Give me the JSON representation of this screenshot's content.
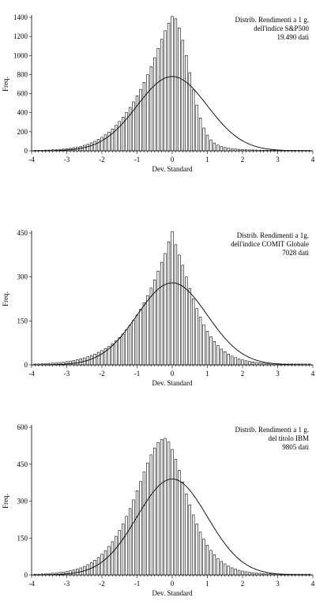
{
  "chart_data": [
    {
      "type": "bar",
      "overlay": "normal-curve",
      "annotation": [
        "Distrib. Rendimenti a 1 g.",
        "dell'indice S&P500",
        "19.490 dati"
      ],
      "annotation_position": "top-right",
      "xlabel": "Dev. Standard",
      "ylabel": "Freq.",
      "xlim": [
        -4,
        4
      ],
      "ylim": [
        0,
        1400
      ],
      "xticks": [
        "-4",
        "-3",
        "-2",
        "-1",
        "0",
        "1",
        "2",
        "3",
        "4"
      ],
      "yticks": [
        "0",
        "200",
        "400",
        "600",
        "800",
        "1000",
        "1200",
        "1400"
      ],
      "x": [
        -3.9,
        -3.8,
        -3.7,
        -3.6,
        -3.5,
        -3.4,
        -3.3,
        -3.2,
        -3.1,
        -3.0,
        -2.9,
        -2.8,
        -2.7,
        -2.6,
        -2.5,
        -2.4,
        -2.3,
        -2.2,
        -2.1,
        -2.0,
        -1.9,
        -1.8,
        -1.7,
        -1.6,
        -1.5,
        -1.4,
        -1.3,
        -1.2,
        -1.1,
        -1.0,
        -0.9,
        -0.8,
        -0.7,
        -0.6,
        -0.5,
        -0.4,
        -0.3,
        -0.2,
        -0.1,
        0.0,
        0.1,
        0.2,
        0.3,
        0.4,
        0.5,
        0.6,
        0.7,
        0.8,
        0.9,
        1.0,
        1.1,
        1.2,
        1.3,
        1.4,
        1.5,
        1.6,
        1.7,
        1.8,
        1.9,
        2.0,
        2.1,
        2.2,
        2.3,
        2.4,
        2.5,
        2.6,
        2.7,
        2.8,
        2.9,
        3.0,
        3.1,
        3.2,
        3.3,
        3.4,
        3.5,
        3.6,
        3.7,
        3.8,
        3.9
      ],
      "values": [
        5,
        5,
        6,
        7,
        8,
        10,
        12,
        15,
        18,
        22,
        27,
        33,
        40,
        48,
        58,
        70,
        84,
        100,
        120,
        142,
        168,
        197,
        230,
        267,
        308,
        353,
        402,
        456,
        514,
        577,
        645,
        718,
        798,
        884,
        977,
        1074,
        1170,
        1260,
        1340,
        1410,
        1385,
        1290,
        1160,
        1000,
        820,
        640,
        480,
        345,
        240,
        165,
        115,
        82,
        60,
        45,
        35,
        28,
        23,
        19,
        16,
        13,
        11,
        10,
        9,
        8,
        7,
        6,
        6,
        5,
        5,
        5,
        5,
        5,
        5,
        5,
        5,
        5,
        5,
        5,
        5
      ],
      "curve_peak": 780,
      "curve_sigma": 1.0
    },
    {
      "type": "bar",
      "overlay": "normal-curve",
      "annotation": [
        "Distrib. Rendimenti a 1g.",
        "dell'indice COMIT Globale",
        "7028 dati"
      ],
      "annotation_position": "top-right",
      "xlabel": "Dev. Standard",
      "ylabel": "Freq.",
      "xlim": [
        -4,
        4
      ],
      "ylim": [
        0,
        450
      ],
      "xticks": [
        "-4",
        "-3",
        "-2",
        "-1",
        "0",
        "1",
        "2",
        "3",
        "4"
      ],
      "yticks": [
        "0",
        "150",
        "300",
        "450"
      ],
      "x": [
        -3.9,
        -3.8,
        -3.7,
        -3.6,
        -3.5,
        -3.4,
        -3.3,
        -3.2,
        -3.1,
        -3.0,
        -2.9,
        -2.8,
        -2.7,
        -2.6,
        -2.5,
        -2.4,
        -2.3,
        -2.2,
        -2.1,
        -2.0,
        -1.9,
        -1.8,
        -1.7,
        -1.6,
        -1.5,
        -1.4,
        -1.3,
        -1.2,
        -1.1,
        -1.0,
        -0.9,
        -0.8,
        -0.7,
        -0.6,
        -0.5,
        -0.4,
        -0.3,
        -0.2,
        -0.1,
        0.0,
        0.1,
        0.2,
        0.3,
        0.4,
        0.5,
        0.6,
        0.7,
        0.8,
        0.9,
        1.0,
        1.1,
        1.2,
        1.3,
        1.4,
        1.5,
        1.6,
        1.7,
        1.8,
        1.9,
        2.0,
        2.1,
        2.2,
        2.3,
        2.4,
        2.5,
        2.6,
        2.7,
        2.8,
        2.9,
        3.0,
        3.1,
        3.2,
        3.3,
        3.4,
        3.5,
        3.6,
        3.7,
        3.8,
        3.9
      ],
      "values": [
        3,
        3,
        4,
        4,
        5,
        6,
        7,
        8,
        9,
        11,
        13,
        15,
        18,
        21,
        24,
        28,
        32,
        37,
        43,
        49,
        56,
        63,
        72,
        82,
        93,
        105,
        120,
        135,
        152,
        170,
        190,
        212,
        236,
        262,
        290,
        320,
        350,
        380,
        420,
        455,
        410,
        375,
        340,
        300,
        260,
        225,
        192,
        163,
        137,
        115,
        96,
        80,
        66,
        54,
        45,
        37,
        30,
        25,
        20,
        17,
        14,
        12,
        10,
        8,
        7,
        6,
        5,
        5,
        4,
        4,
        3,
        3,
        3,
        3,
        3,
        3,
        3,
        3,
        3
      ],
      "curve_peak": 280,
      "curve_sigma": 1.0
    },
    {
      "type": "bar",
      "overlay": "normal-curve",
      "annotation": [
        "Distrib. Rendimenti a 1 g.",
        "del titolo IBM",
        "9805 dati"
      ],
      "annotation_position": "top-right",
      "xlabel": "Dev. Standard",
      "ylabel": "Freq.",
      "xlim": [
        -4,
        4
      ],
      "ylim": [
        0,
        600
      ],
      "xticks": [
        "-4",
        "-3",
        "-2",
        "-1",
        "0",
        "1",
        "2",
        "3",
        "4"
      ],
      "yticks": [
        "0",
        "150",
        "300",
        "450",
        "600"
      ],
      "x": [
        -3.9,
        -3.8,
        -3.7,
        -3.6,
        -3.5,
        -3.4,
        -3.3,
        -3.2,
        -3.1,
        -3.0,
        -2.9,
        -2.8,
        -2.7,
        -2.6,
        -2.5,
        -2.4,
        -2.3,
        -2.2,
        -2.1,
        -2.0,
        -1.9,
        -1.8,
        -1.7,
        -1.6,
        -1.5,
        -1.4,
        -1.3,
        -1.2,
        -1.1,
        -1.0,
        -0.9,
        -0.8,
        -0.7,
        -0.6,
        -0.5,
        -0.4,
        -0.3,
        -0.2,
        -0.1,
        0.0,
        0.1,
        0.2,
        0.3,
        0.4,
        0.5,
        0.6,
        0.7,
        0.8,
        0.9,
        1.0,
        1.1,
        1.2,
        1.3,
        1.4,
        1.5,
        1.6,
        1.7,
        1.8,
        1.9,
        2.0,
        2.1,
        2.2,
        2.3,
        2.4,
        2.5,
        2.6,
        2.7,
        2.8,
        2.9,
        3.0,
        3.1,
        3.2,
        3.3,
        3.4,
        3.5,
        3.6,
        3.7,
        3.8,
        3.9
      ],
      "values": [
        3,
        3,
        4,
        5,
        6,
        7,
        8,
        10,
        12,
        14,
        17,
        20,
        24,
        29,
        35,
        42,
        50,
        60,
        71,
        84,
        99,
        116,
        135,
        157,
        181,
        208,
        238,
        270,
        305,
        342,
        380,
        418,
        455,
        488,
        516,
        538,
        550,
        555,
        540,
        510,
        470,
        425,
        378,
        330,
        285,
        244,
        207,
        174,
        146,
        121,
        100,
        82,
        67,
        55,
        45,
        36,
        29,
        24,
        19,
        16,
        13,
        11,
        9,
        8,
        7,
        6,
        5,
        5,
        4,
        4,
        4,
        3,
        3,
        3,
        3,
        3,
        3,
        3,
        3
      ],
      "curve_peak": 390,
      "curve_sigma": 1.0
    }
  ]
}
